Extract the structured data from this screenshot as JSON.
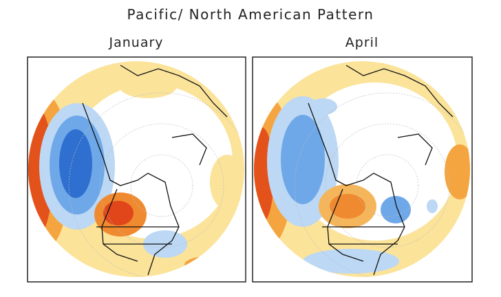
{
  "title": "Pacific/ North American Pattern",
  "panels": [
    {
      "title": "January"
    },
    {
      "title": "April"
    }
  ]
}
